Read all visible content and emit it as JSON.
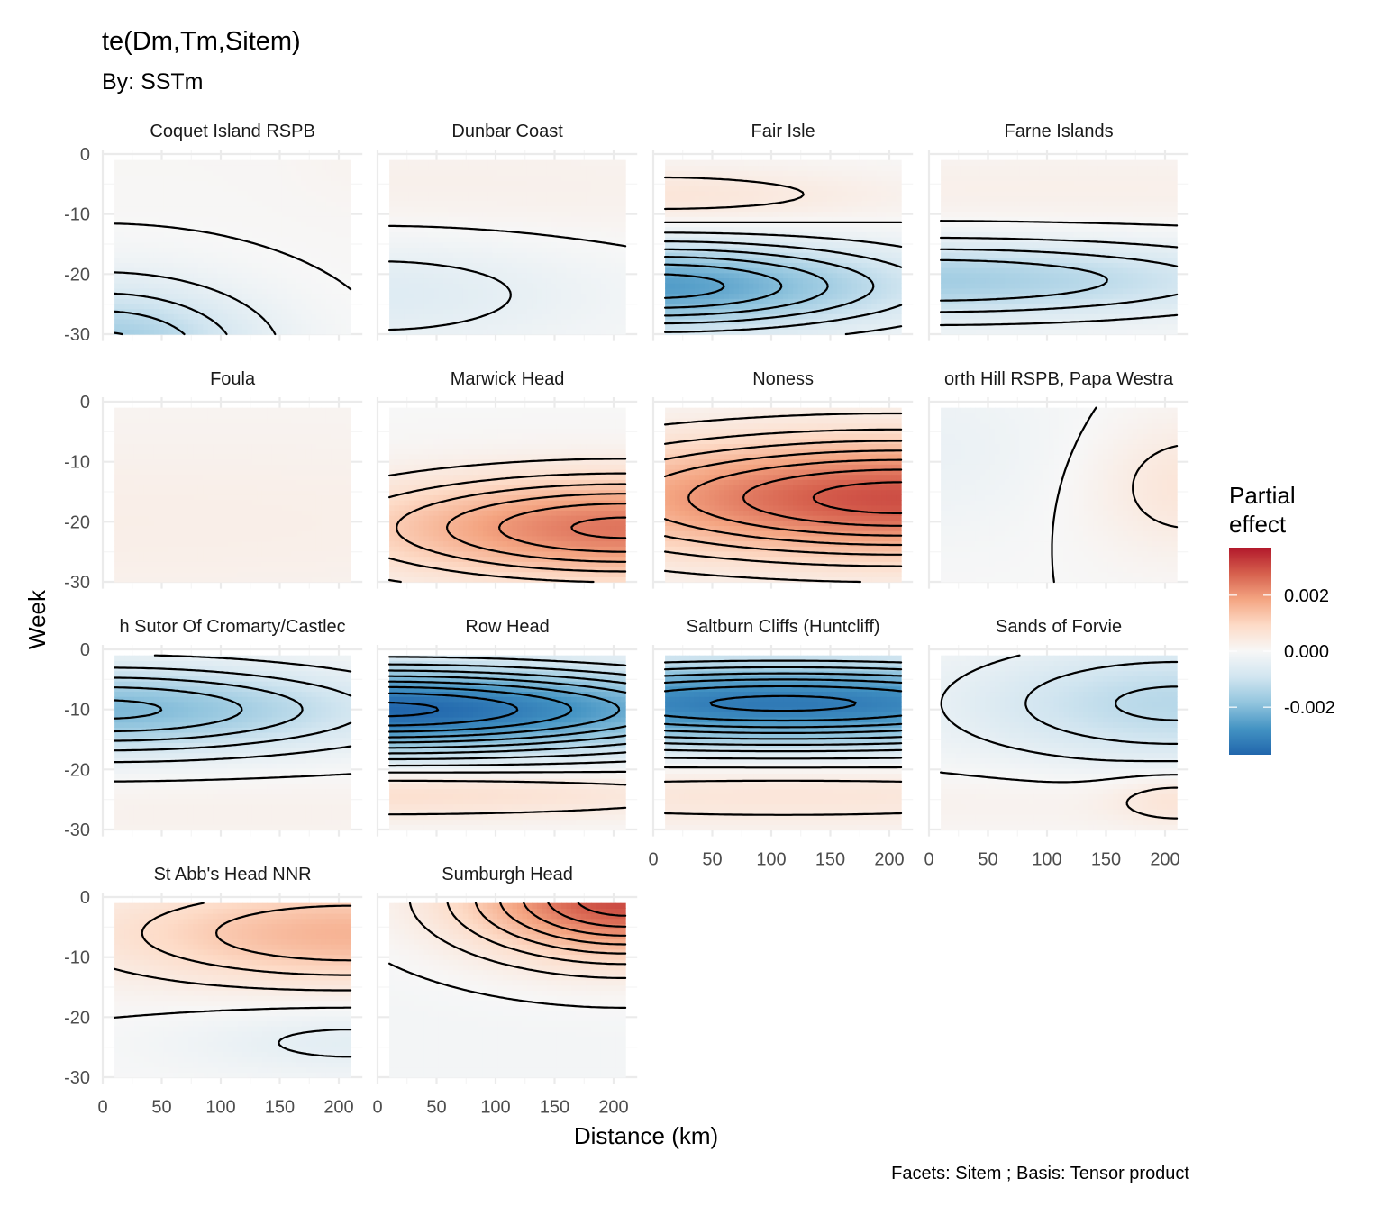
{
  "chart_data": {
    "type": "heatmap",
    "title": "te(Dm,Tm,Sitem)",
    "subtitle": "By: SSTm",
    "xlabel": "Distance (km)",
    "ylabel": "Week",
    "caption": "Facets: Sitem ; Basis: Tensor product",
    "xlim": [
      0,
      220
    ],
    "ylim": [
      -31,
      0
    ],
    "x_ticks": [
      "0",
      "50",
      "100",
      "150",
      "200"
    ],
    "y_ticks": [
      "0",
      "-10",
      "-20",
      "-30"
    ],
    "x_tick_values": [
      0,
      50,
      100,
      150,
      200
    ],
    "y_tick_values": [
      0,
      -10,
      -20,
      -30
    ],
    "data_x_range": [
      10,
      210
    ],
    "data_y_range": [
      -30,
      -1
    ],
    "contour_interval": 0.0004,
    "legend": {
      "title_line1": "Partial",
      "title_line2": "effect",
      "labels": [
        "0.002",
        "0.000",
        "-0.002"
      ],
      "values": [
        0.002,
        0,
        -0.002
      ],
      "limits": [
        -0.0037,
        0.0037
      ],
      "position": "right",
      "colors": [
        "#2166AC",
        "#4393C3",
        "#92C5DE",
        "#D1E5F0",
        "#F7F7F7",
        "#FDDBC7",
        "#F4A582",
        "#D6604D",
        "#B2182B"
      ]
    },
    "grid": true,
    "facets": [
      {
        "name": "Coquet Island RSPB",
        "base": 5e-05,
        "peaks": [
          {
            "x": 0,
            "y": -33,
            "value": -0.0018,
            "sx": 90,
            "sy": 8
          },
          {
            "x": 220,
            "y": 0,
            "value": 0.0001,
            "sx": 40,
            "sy": 6
          }
        ]
      },
      {
        "name": "Dunbar Coast",
        "base": 0.0,
        "peaks": [
          {
            "x": 0,
            "y": -6,
            "value": 0.00025,
            "sx": 400,
            "sy": 7
          },
          {
            "x": 0,
            "y": -23,
            "value": -0.0006,
            "sx": 130,
            "sy": 7
          }
        ]
      },
      {
        "name": "Fair Isle",
        "base": 0.0,
        "peaks": [
          {
            "x": 0,
            "y": -7,
            "value": 0.0006,
            "sx": 150,
            "sy": 3.5
          },
          {
            "x": 0,
            "y": -22,
            "value": -0.0026,
            "sx": 150,
            "sy": 5
          }
        ]
      },
      {
        "name": "Farne Islands",
        "base": 0.0,
        "peaks": [
          {
            "x": 100,
            "y": -6,
            "value": 0.00025,
            "sx": 400,
            "sy": 5
          },
          {
            "x": 0,
            "y": -21,
            "value": -0.0016,
            "sx": 200,
            "sy": 4.5
          }
        ]
      },
      {
        "name": "Foula",
        "base": 0.0001,
        "peaks": [
          {
            "x": 0,
            "y": -20,
            "value": 0.0002,
            "sx": 400,
            "sy": 10
          }
        ]
      },
      {
        "name": "Marwick Head",
        "base": 0.0,
        "peaks": [
          {
            "x": 210,
            "y": -21,
            "value": 0.0025,
            "sx": 160,
            "sy": 6
          }
        ]
      },
      {
        "name": "Noness",
        "base": 0.0,
        "peaks": [
          {
            "x": 210,
            "y": -16,
            "value": 0.003,
            "sx": 200,
            "sy": 7
          }
        ]
      },
      {
        "name": "orth Hill RSPB, Papa Westra",
        "base": 0.0,
        "peaks": [
          {
            "x": 0,
            "y": -8,
            "value": -0.0003,
            "sx": 90,
            "sy": 10
          },
          {
            "x": 220,
            "y": -14,
            "value": 0.0006,
            "sx": 60,
            "sy": 8
          }
        ]
      },
      {
        "name": "h Sutor Of Cromarty/Castlec",
        "base": 0.0,
        "peaks": [
          {
            "x": 0,
            "y": -10,
            "value": -0.0021,
            "sx": 160,
            "sy": 5
          },
          {
            "x": 100,
            "y": -27,
            "value": 0.0002,
            "sx": 400,
            "sy": 5
          }
        ]
      },
      {
        "name": "Row Head",
        "base": 0.0,
        "peaks": [
          {
            "x": 0,
            "y": -10,
            "value": -0.0037,
            "sx": 220,
            "sy": 5
          },
          {
            "x": 0,
            "y": -24,
            "value": 0.0008,
            "sx": 250,
            "sy": 3
          }
        ]
      },
      {
        "name": "Saltburn Cliffs (Huntcliff)",
        "base": 0.0,
        "peaks": [
          {
            "x": 110,
            "y": -9,
            "value": -0.0033,
            "sx": 250,
            "sy": 5
          },
          {
            "x": 110,
            "y": -24,
            "value": 0.0006,
            "sx": 300,
            "sy": 4
          }
        ]
      },
      {
        "name": "Sands of Forvie",
        "base": 0.0,
        "peaks": [
          {
            "x": 210,
            "y": -9,
            "value": -0.0013,
            "sx": 130,
            "sy": 7
          },
          {
            "x": 210,
            "y": -25,
            "value": 0.0005,
            "sx": 40,
            "sy": 3
          },
          {
            "x": 100,
            "y": -25,
            "value": 0.0002,
            "sx": 400,
            "sy": 4
          }
        ]
      },
      {
        "name": "St Abb's Head NNR",
        "base": 0.0,
        "peaks": [
          {
            "x": 210,
            "y": -6,
            "value": 0.0016,
            "sx": 150,
            "sy": 6
          },
          {
            "x": 210,
            "y": -24,
            "value": -0.0005,
            "sx": 100,
            "sy": 4
          }
        ]
      },
      {
        "name": "Sumburgh Head",
        "base": -0.0001,
        "peaks": [
          {
            "x": 210,
            "y": 0,
            "value": 0.0032,
            "sx": 95,
            "sy": 7
          }
        ]
      }
    ]
  }
}
